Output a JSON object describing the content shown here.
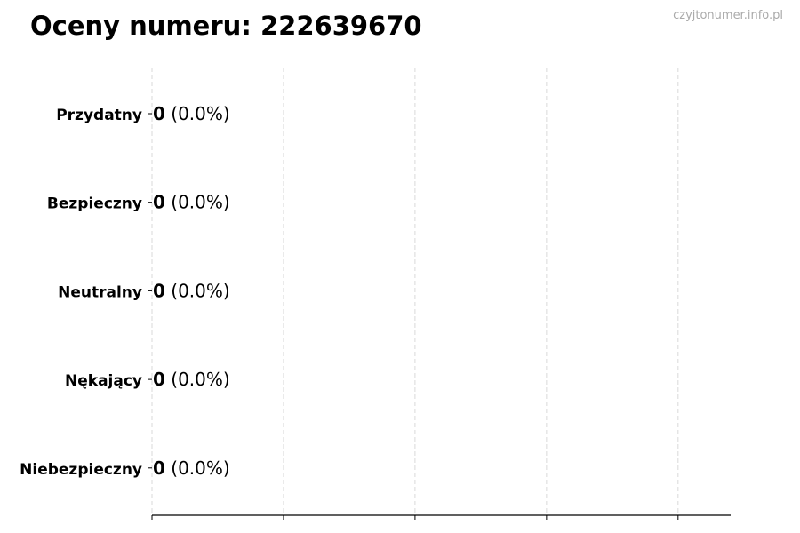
{
  "chart_data": {
    "type": "bar",
    "orientation": "horizontal",
    "title": "Oceny numeru: 222639670",
    "watermark": "czyjtonumer.info.pl",
    "categories": [
      "Przydatny",
      "Bezpieczny",
      "Neutralny",
      "Nękający",
      "Niebezpieczny"
    ],
    "values": [
      0,
      0,
      0,
      0,
      0
    ],
    "percent_labels": [
      "(0.0%)",
      "(0.0%)",
      "(0.0%)",
      "(0.0%)",
      "(0.0%)"
    ],
    "xlim": [
      0,
      4.4
    ],
    "xticks": [
      0,
      1,
      2,
      3,
      4
    ],
    "xtick_labels_shown": false,
    "grid": "vertical dashed",
    "colors": {
      "grid": "#d9d9d9",
      "axis": "#000000",
      "bar_edge": "#000000"
    }
  }
}
